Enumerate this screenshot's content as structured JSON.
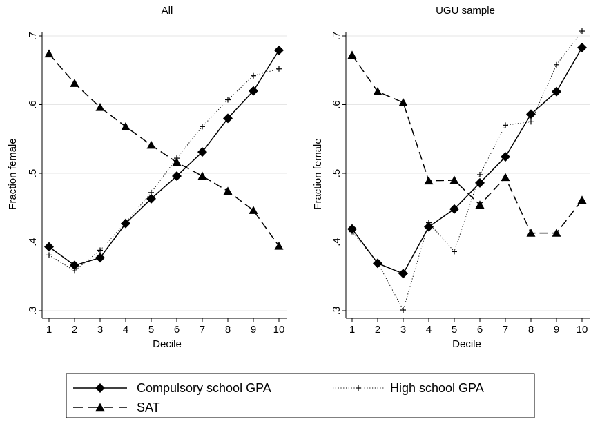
{
  "chart_data": [
    {
      "type": "line",
      "title": "All",
      "xlabel": "Decile",
      "ylabel": "Fraction female",
      "x": [
        1,
        2,
        3,
        4,
        5,
        6,
        7,
        8,
        9,
        10
      ],
      "xlim": [
        1,
        10
      ],
      "ylim": [
        0.3,
        0.7
      ],
      "yticks": [
        0.3,
        0.4,
        0.5,
        0.6,
        0.7
      ],
      "ytick_labels": [
        ".3",
        ".4",
        ".5",
        ".6",
        ".7"
      ],
      "grid": true,
      "series": [
        {
          "name": "Compulsory school GPA",
          "style": "solid",
          "marker": "diamond",
          "values": [
            0.393,
            0.366,
            0.377,
            0.427,
            0.463,
            0.496,
            0.531,
            0.58,
            0.62,
            0.679
          ]
        },
        {
          "name": "High school GPA",
          "style": "dotted",
          "marker": "plus",
          "values": [
            0.381,
            0.358,
            0.388,
            0.428,
            0.472,
            0.522,
            0.568,
            0.607,
            0.642,
            0.652
          ]
        },
        {
          "name": "SAT",
          "style": "dashed",
          "marker": "triangle",
          "values": [
            0.674,
            0.631,
            0.596,
            0.568,
            0.541,
            0.516,
            0.496,
            0.474,
            0.446,
            0.394
          ]
        }
      ]
    },
    {
      "type": "line",
      "title": "UGU sample",
      "xlabel": "Decile",
      "ylabel": "Fraction female",
      "x": [
        1,
        2,
        3,
        4,
        5,
        6,
        7,
        8,
        9,
        10
      ],
      "xlim": [
        1,
        10
      ],
      "ylim": [
        0.3,
        0.7
      ],
      "yticks": [
        0.3,
        0.4,
        0.5,
        0.6,
        0.7
      ],
      "ytick_labels": [
        ".3",
        ".4",
        ".5",
        ".6",
        ".7"
      ],
      "grid": true,
      "series": [
        {
          "name": "Compulsory school GPA",
          "style": "solid",
          "marker": "diamond",
          "values": [
            0.419,
            0.369,
            0.354,
            0.422,
            0.448,
            0.486,
            0.524,
            0.586,
            0.619,
            0.683
          ]
        },
        {
          "name": "High school GPA",
          "style": "dotted",
          "marker": "plus",
          "values": [
            0.415,
            0.37,
            0.301,
            0.428,
            0.386,
            0.498,
            0.57,
            0.575,
            0.658,
            0.707
          ]
        },
        {
          "name": "SAT",
          "style": "dashed",
          "marker": "triangle",
          "values": [
            0.672,
            0.619,
            0.603,
            0.489,
            0.49,
            0.454,
            0.494,
            0.413,
            0.413,
            0.461
          ]
        }
      ]
    }
  ],
  "legend": {
    "placement": "bottom",
    "items": [
      {
        "label": "Compulsory school GPA",
        "style": "solid",
        "marker": "diamond"
      },
      {
        "label": "High school GPA",
        "style": "dotted",
        "marker": "plus"
      },
      {
        "label": "SAT",
        "style": "dashed",
        "marker": "triangle"
      }
    ]
  }
}
